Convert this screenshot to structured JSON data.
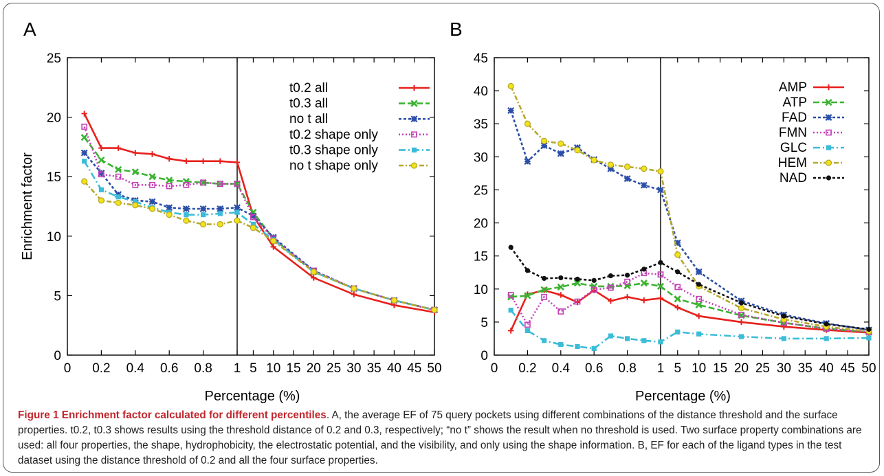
{
  "chart_data": [
    {
      "panel_label": "A",
      "type": "line",
      "xlabel": "Percentage (%)",
      "ylabel": "Enrichment factor",
      "ylim": [
        0,
        25
      ],
      "yticks": [
        0,
        5,
        10,
        15,
        20,
        25
      ],
      "xticks": [
        "0",
        "0.2",
        "0.4",
        "0.6",
        "0.8",
        "1",
        "5",
        "10",
        "15",
        "20",
        "25",
        "30",
        "35",
        "40",
        "45",
        "50"
      ],
      "x_axis_note": "piecewise axis: linear 0 to 1, then linear 1 to 50, split by vertical line at 1",
      "legend_position": "top-right",
      "x": [
        0.1,
        0.2,
        0.3,
        0.4,
        0.5,
        0.6,
        0.7,
        0.8,
        0.9,
        1,
        5,
        10,
        20,
        30,
        40,
        50
      ],
      "series": [
        {
          "name": "t0.2 all",
          "color": "#e8201c",
          "dash": "",
          "marker": "plus",
          "values": [
            20.3,
            17.4,
            17.4,
            17.0,
            16.9,
            16.5,
            16.3,
            16.3,
            16.3,
            16.2,
            11.7,
            9.1,
            6.5,
            5.1,
            4.2,
            3.6
          ]
        },
        {
          "name": "t0.3 all",
          "color": "#3cb332",
          "dash": "9 4",
          "marker": "x",
          "values": [
            18.3,
            16.4,
            15.6,
            15.4,
            15.0,
            14.7,
            14.6,
            14.5,
            14.4,
            14.4,
            12.0,
            9.8,
            7.0,
            5.6,
            4.6,
            3.8
          ]
        },
        {
          "name": "no t all",
          "color": "#2b4ea8",
          "dash": "4 3",
          "marker": "star",
          "values": [
            17.0,
            15.3,
            13.5,
            13.0,
            12.9,
            12.4,
            12.3,
            12.3,
            12.3,
            12.4,
            11.7,
            9.9,
            7.1,
            5.6,
            4.6,
            3.8
          ]
        },
        {
          "name": "t0.2 shape only",
          "color": "#c440b8",
          "dash": "2 3",
          "marker": "square",
          "values": [
            19.2,
            15.2,
            15.0,
            14.3,
            14.3,
            14.2,
            14.3,
            14.5,
            14.4,
            14.4,
            11.6,
            9.8,
            7.1,
            5.6,
            4.6,
            3.8
          ]
        },
        {
          "name": "t0.3 shape only",
          "color": "#3bbcd8",
          "dash": "10 4 2 4",
          "marker": "filled-square",
          "values": [
            16.3,
            13.9,
            13.3,
            12.9,
            12.4,
            12.0,
            11.8,
            11.8,
            11.9,
            12.0,
            11.0,
            9.7,
            7.0,
            5.6,
            4.6,
            3.8
          ]
        },
        {
          "name": "no t shape only",
          "color": "#b5a82a",
          "dash": "7 3 2 3",
          "marker": "circle",
          "values": [
            14.6,
            13.0,
            12.8,
            12.6,
            12.3,
            11.8,
            11.3,
            11.0,
            11.0,
            11.3,
            10.7,
            9.6,
            7.0,
            5.6,
            4.6,
            3.8
          ]
        }
      ]
    },
    {
      "panel_label": "B",
      "type": "line",
      "xlabel": "Percentage (%)",
      "ylabel": "",
      "ylim": [
        0,
        45
      ],
      "yticks": [
        0,
        5,
        10,
        15,
        20,
        25,
        30,
        35,
        40,
        45
      ],
      "xticks": [
        "0",
        "0.2",
        "0.4",
        "0.6",
        "0.8",
        "1",
        "5",
        "10",
        "15",
        "20",
        "25",
        "30",
        "35",
        "40",
        "45",
        "50"
      ],
      "x_axis_note": "piecewise axis: linear 0 to 1, then linear 1 to 50, split by vertical line at 1",
      "legend_position": "top-right",
      "x": [
        0.1,
        0.2,
        0.3,
        0.4,
        0.5,
        0.6,
        0.7,
        0.8,
        0.9,
        1,
        5,
        10,
        20,
        30,
        40,
        50
      ],
      "series": [
        {
          "name": "AMP",
          "color": "#e8201c",
          "dash": "",
          "marker": "plus",
          "values": [
            3.7,
            9.2,
            9.8,
            9.1,
            8.0,
            9.8,
            8.2,
            8.8,
            8.3,
            8.6,
            7.2,
            5.9,
            5.0,
            4.3,
            3.8,
            3.4
          ]
        },
        {
          "name": "ATP",
          "color": "#3cb332",
          "dash": "9 4",
          "marker": "x",
          "values": [
            8.8,
            9.0,
            9.9,
            10.3,
            10.9,
            10.4,
            10.4,
            10.5,
            10.9,
            10.4,
            8.5,
            7.6,
            6.0,
            4.9,
            4.0,
            3.5
          ]
        },
        {
          "name": "FAD",
          "color": "#2b4ea8",
          "dash": "4 3",
          "marker": "star",
          "values": [
            37.0,
            29.3,
            31.7,
            30.5,
            31.4,
            29.6,
            28.2,
            26.7,
            25.7,
            25.0,
            17.0,
            12.6,
            8.2,
            6.1,
            4.8,
            3.8
          ]
        },
        {
          "name": "FMN",
          "color": "#c440b8",
          "dash": "2 3",
          "marker": "square",
          "values": [
            9.1,
            4.6,
            8.8,
            6.6,
            8.1,
            9.9,
            10.2,
            11.1,
            12.4,
            12.2,
            10.3,
            8.5,
            6.1,
            4.9,
            4.0,
            3.5
          ]
        },
        {
          "name": "GLC",
          "color": "#3bbcd8",
          "dash": "10 4 2 4",
          "marker": "filled-square",
          "values": [
            6.8,
            3.7,
            2.2,
            1.6,
            1.3,
            1.0,
            2.9,
            2.5,
            2.2,
            2.0,
            3.5,
            3.2,
            2.8,
            2.5,
            2.5,
            2.6
          ]
        },
        {
          "name": "HEM",
          "color": "#b5a82a",
          "dash": "7 3 2 3",
          "marker": "circle",
          "values": [
            40.7,
            35.0,
            32.4,
            32.0,
            31.0,
            29.5,
            28.8,
            28.5,
            28.2,
            27.8,
            15.2,
            10.4,
            7.1,
            5.4,
            4.3,
            3.6
          ]
        },
        {
          "name": "NAD",
          "color": "#111111",
          "dash": "4 3",
          "marker": "dot",
          "values": [
            16.3,
            12.8,
            11.6,
            11.7,
            11.5,
            11.3,
            12.0,
            12.1,
            13.0,
            14.0,
            12.6,
            10.7,
            7.9,
            5.9,
            4.7,
            3.9
          ]
        }
      ]
    }
  ],
  "caption": {
    "title": "Figure 1 Enrichment factor calculated for different percentiles",
    "body": ". A, the average EF of 75 query pockets using different combinations of the distance threshold and the surface properties. t0.2, t0.3 shows results using the threshold distance of 0.2 and 0.3, respectively; “no t” shows the result when no threshold is used. Two surface property combinations are used: all four properties, the shape, hydrophobicity, the electrostatic potential, and the visibility, and only using the shape information. B, EF for each of the ligand types in the test dataset using the distance threshold of 0.2 and all the four surface properties."
  }
}
